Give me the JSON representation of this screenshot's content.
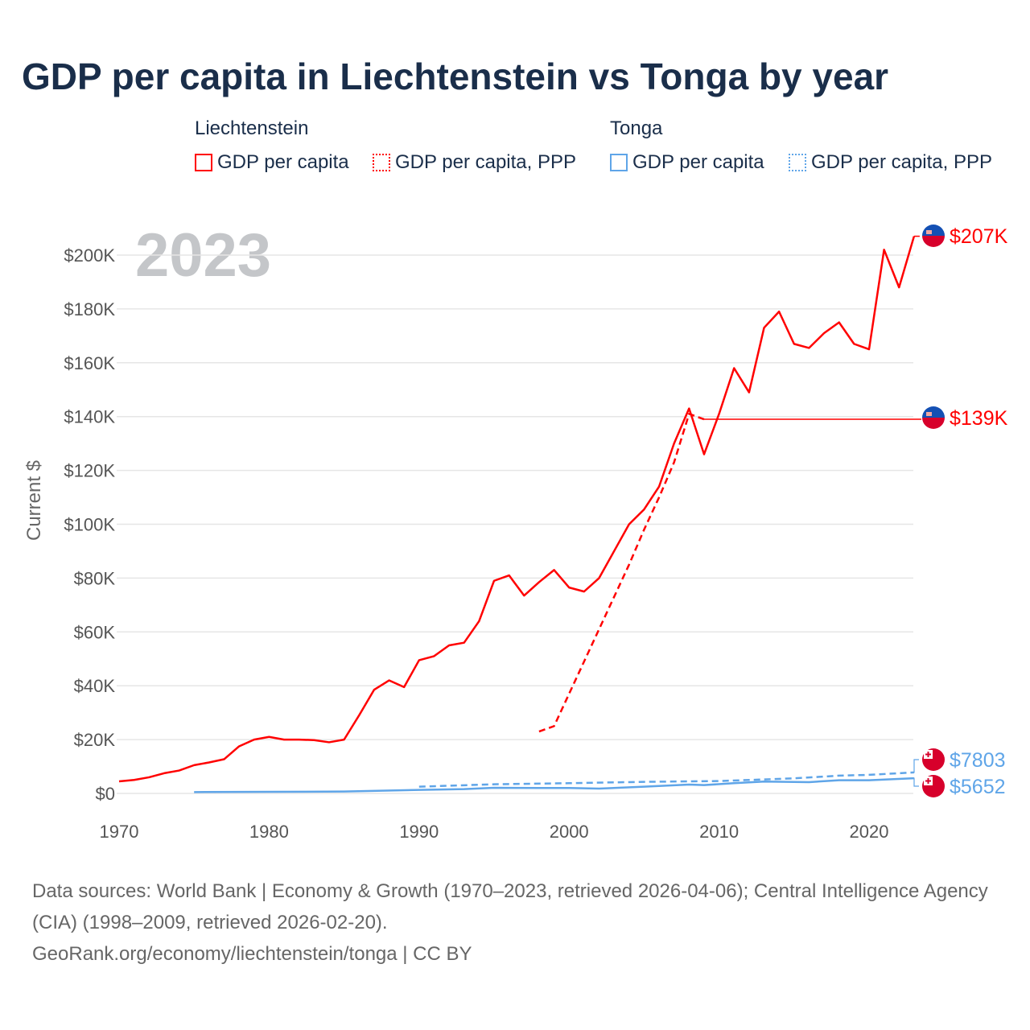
{
  "title": "GDP per capita in Liechtenstein vs Tonga by year",
  "legend": {
    "groups": [
      {
        "name": "Liechtenstein",
        "items": [
          "GDP per capita",
          "GDP per capita, PPP"
        ],
        "color": "#ff0000"
      },
      {
        "name": "Tonga",
        "items": [
          "GDP per capita",
          "GDP per capita, PPP"
        ],
        "color": "#5fa5e8"
      }
    ]
  },
  "year_watermark": "2023",
  "end_labels": [
    "$207K",
    "$139K",
    "$7803",
    "$5652"
  ],
  "source": {
    "line1": "Data sources: World Bank | Economy & Growth (1970–2023, retrieved 2026-04-06); Central Intelligence Agency (CIA) (1998–2009, retrieved 2026-02-20).",
    "line2": "GeoRank.org/economy/liechtenstein/tonga | CC BY"
  },
  "chart_data": {
    "type": "line",
    "title": "GDP per capita in Liechtenstein vs Tonga by year",
    "xlabel": "",
    "ylabel": "Current $",
    "xlim": [
      1970,
      2023
    ],
    "ylim": [
      0,
      207000
    ],
    "xticks": [
      "1970",
      "1980",
      "1990",
      "2000",
      "2010",
      "2020"
    ],
    "xtick_values": [
      1970,
      1980,
      1990,
      2000,
      2010,
      2020
    ],
    "yticks": [
      "$0",
      "$20K",
      "$40K",
      "$60K",
      "$80K",
      "$100K",
      "$120K",
      "$140K",
      "$160K",
      "$180K",
      "$200K"
    ],
    "ytick_values": [
      0,
      20000,
      40000,
      60000,
      80000,
      100000,
      120000,
      140000,
      160000,
      180000,
      200000
    ],
    "grid": true,
    "legend_position": "top",
    "series": [
      {
        "name": "Liechtenstein GDP per capita",
        "color": "#ff0000",
        "dash": false,
        "x": [
          1970,
          1971,
          1972,
          1973,
          1974,
          1975,
          1976,
          1977,
          1978,
          1979,
          1980,
          1981,
          1982,
          1983,
          1984,
          1985,
          1986,
          1987,
          1988,
          1989,
          1990,
          1991,
          1992,
          1993,
          1994,
          1995,
          1996,
          1997,
          1998,
          1999,
          2000,
          2001,
          2002,
          2003,
          2004,
          2005,
          2006,
          2007,
          2008,
          2009,
          2010,
          2011,
          2012,
          2013,
          2014,
          2015,
          2016,
          2017,
          2018,
          2019,
          2020,
          2021,
          2022,
          2023
        ],
        "y": [
          4500,
          5000,
          6000,
          7500,
          8500,
          10500,
          11500,
          12700,
          17500,
          20000,
          21000,
          20000,
          20000,
          19800,
          19000,
          20000,
          29000,
          38500,
          42000,
          39500,
          49500,
          51000,
          55000,
          56000,
          64000,
          79000,
          81000,
          73500,
          78500,
          83000,
          76500,
          75000,
          80000,
          90000,
          100000,
          105500,
          114000,
          130000,
          143000,
          126000,
          141000,
          158000,
          149000,
          173000,
          179000,
          167000,
          165500,
          171000,
          175000,
          167000,
          165000,
          202000,
          188000,
          207000
        ]
      },
      {
        "name": "Liechtenstein GDP per capita, PPP",
        "color": "#ff0000",
        "dash": true,
        "x": [
          1998,
          1999,
          2000,
          2001,
          2002,
          2003,
          2004,
          2005,
          2006,
          2007,
          2008,
          2009
        ],
        "y": [
          23000,
          25000,
          37000,
          49000,
          61000,
          73000,
          85000,
          98000,
          110000,
          123000,
          141000,
          139000
        ]
      },
      {
        "name": "Tonga GDP per capita",
        "color": "#5fa5e8",
        "dash": false,
        "x": [
          1975,
          1980,
          1985,
          1990,
          1993,
          1995,
          1998,
          2000,
          2002,
          2005,
          2008,
          2009,
          2011,
          2013,
          2016,
          2018,
          2020,
          2023
        ],
        "y": [
          500,
          600,
          700,
          1300,
          1600,
          2100,
          2000,
          2000,
          1800,
          2500,
          3300,
          3100,
          3800,
          4400,
          4200,
          4900,
          4900,
          5652
        ]
      },
      {
        "name": "Tonga GDP per capita, PPP",
        "color": "#5fa5e8",
        "dash": true,
        "x": [
          1990,
          1995,
          2000,
          2005,
          2010,
          2015,
          2018,
          2020,
          2023
        ],
        "y": [
          2500,
          3400,
          3800,
          4300,
          4600,
          5600,
          6600,
          6900,
          7803
        ]
      }
    ]
  }
}
